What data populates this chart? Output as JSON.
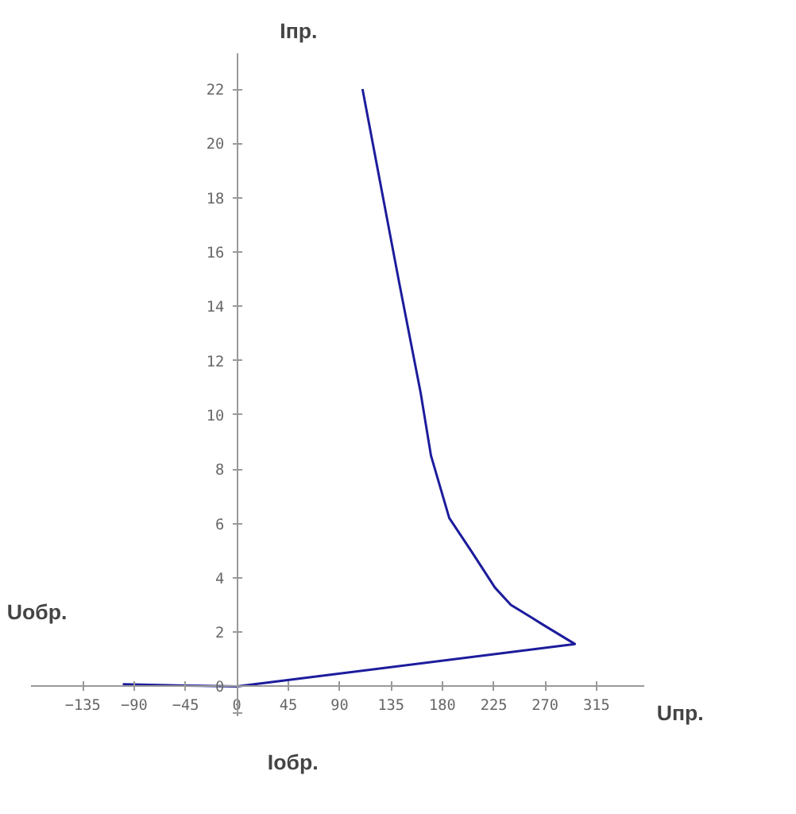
{
  "chart_data": {
    "type": "line",
    "xlabel": "Uпр.",
    "ylabel": "Iпр.",
    "annotations": [
      "Uобр.",
      "Iобр."
    ],
    "x": [
      -100,
      -45,
      0,
      296,
      267,
      258,
      240,
      226,
      205,
      186,
      170,
      161,
      142,
      110
    ],
    "series": [
      {
        "color": "#1c1c9c",
        "values": [
          0.08,
          0.03,
          0,
          1.56,
          2.3,
          2.54,
          3.0,
          3.64,
          5.0,
          6.2,
          8.5,
          10.8,
          14.9,
          22.0
        ]
      }
    ],
    "xlim": [
      -180,
      357
    ],
    "ylim": [
      -1.1,
      23.3
    ],
    "xticks": [
      {
        "value": -135,
        "label": "−135"
      },
      {
        "value": -90,
        "label": "−90"
      },
      {
        "value": -45,
        "label": "−45"
      },
      0,
      45,
      90,
      135,
      180,
      225,
      270,
      315
    ],
    "yticks": [
      {
        "value": -1,
        "label": null
      },
      0,
      2,
      4,
      6,
      8,
      10,
      12,
      14,
      16,
      18,
      20,
      22
    ],
    "grid": false,
    "marker": "none",
    "line_style": "solid"
  }
}
